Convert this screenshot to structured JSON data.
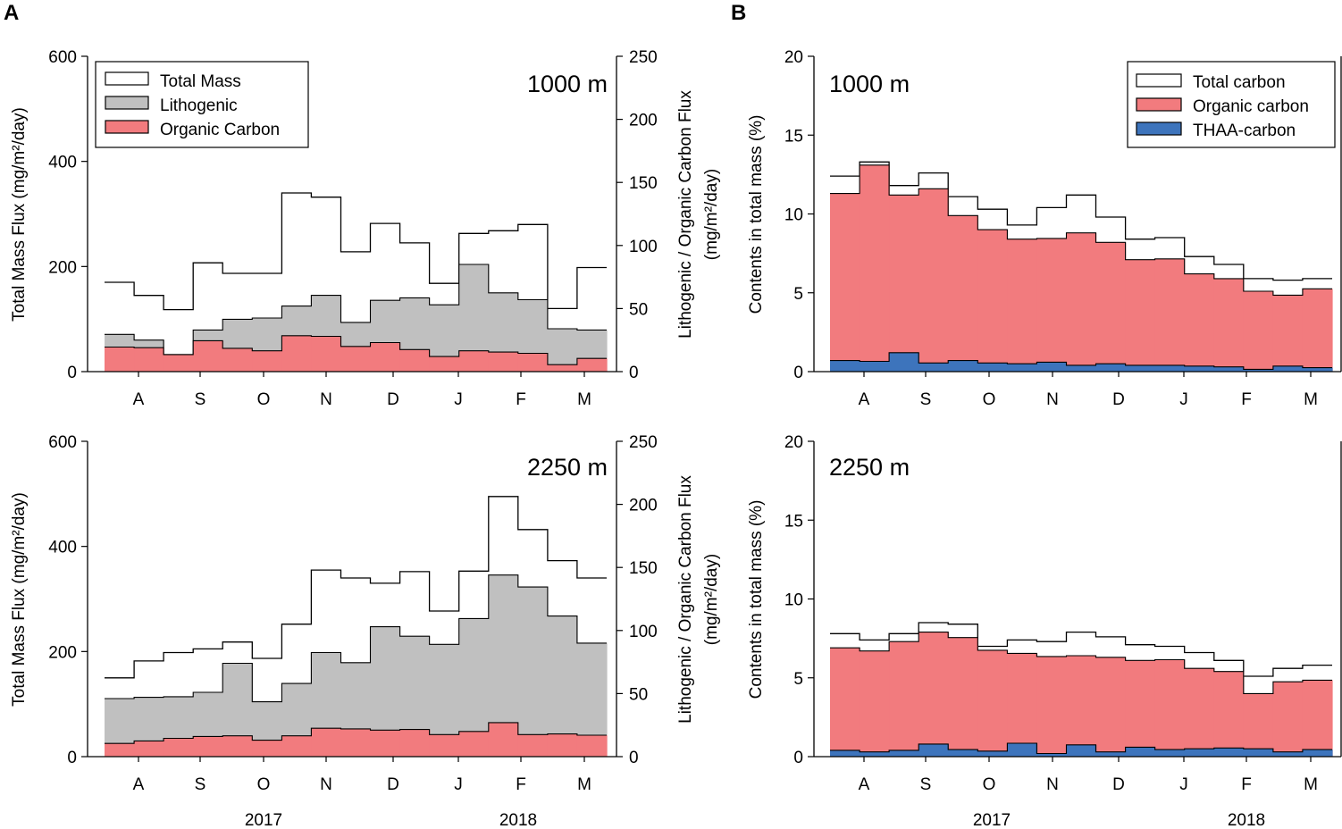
{
  "figure": {
    "panel_a_label": "A",
    "panel_b_label": "B",
    "year_labels": [
      "2017",
      "2018"
    ]
  },
  "colors": {
    "total": "#ffffff",
    "lithogenic": "#c0c0c0",
    "organic": "#f27b7e",
    "thaa": "#3d74bc",
    "line": "#000000"
  },
  "chart_data": [
    {
      "id": "a1",
      "type": "area",
      "panel": "A",
      "depth_label": "1000 m",
      "ylabel_left": "Total Mass Flux (mg/m²/day)",
      "ylabel_right_line1": "Lithogenic / Organic Carbon Flux",
      "ylabel_right_line2": "(mg/m²/day)",
      "ylim_left": [
        0,
        600
      ],
      "yticks_left": [
        "0",
        "200",
        "400",
        "600"
      ],
      "ylim_right": [
        0,
        250
      ],
      "yticks_right": [
        "0",
        "50",
        "100",
        "150",
        "200",
        "250"
      ],
      "month_labels": [
        "A",
        "S",
        "O",
        "N",
        "D",
        "J",
        "F",
        "M"
      ],
      "legend": [
        "Total Mass",
        "Lithogenic",
        "Organic Carbon"
      ],
      "series": [
        {
          "name": "Total Mass",
          "axis": "left",
          "style": "line",
          "values": [
            170,
            145,
            118,
            207,
            187,
            187,
            340,
            332,
            228,
            282,
            245,
            168,
            263,
            268,
            280,
            120,
            198
          ]
        },
        {
          "name": "Lithogenic",
          "axis": "right",
          "style": "fill",
          "values": [
            29.5,
            25.0,
            13.5,
            33.0,
            41.5,
            42.5,
            52.0,
            60.5,
            39.0,
            56.5,
            58.5,
            53.0,
            85.0,
            62.5,
            57.0,
            34.0,
            33.0
          ]
        },
        {
          "name": "Organic Carbon",
          "axis": "right",
          "style": "fill",
          "values": [
            19.5,
            19.0,
            13.5,
            24.5,
            18.5,
            16.5,
            28.5,
            28.0,
            20.0,
            23.0,
            17.5,
            12.0,
            16.5,
            15.5,
            14.5,
            5.5,
            10.5
          ]
        }
      ]
    },
    {
      "id": "a2",
      "type": "area",
      "panel": "A",
      "depth_label": "2250 m",
      "ylabel_left": "Total Mass Flux (mg/m²/day)",
      "ylabel_right_line1": "Lithogenic / Organic Carbon Flux",
      "ylabel_right_line2": "(mg/m²/day)",
      "ylim_left": [
        0,
        600
      ],
      "yticks_left": [
        "0",
        "200",
        "400",
        "600"
      ],
      "ylim_right": [
        0,
        250
      ],
      "yticks_right": [
        "0",
        "50",
        "100",
        "150",
        "200",
        "250"
      ],
      "month_labels": [
        "A",
        "S",
        "O",
        "N",
        "D",
        "J",
        "F",
        "M"
      ],
      "series": [
        {
          "name": "Total Mass",
          "axis": "left",
          "style": "line",
          "values": [
            150,
            182,
            198,
            205,
            218,
            187,
            252,
            355,
            340,
            330,
            352,
            277,
            353,
            495,
            432,
            373,
            340
          ]
        },
        {
          "name": "Lithogenic",
          "axis": "right",
          "style": "fill",
          "values": [
            46.0,
            47.0,
            47.5,
            51.0,
            74.0,
            43.5,
            58.0,
            82.5,
            74.5,
            103.0,
            95.5,
            89.0,
            109.5,
            144.0,
            134.5,
            111.5,
            90.0
          ]
        },
        {
          "name": "Organic Carbon",
          "axis": "right",
          "style": "fill",
          "values": [
            10.5,
            12.5,
            14.5,
            16.0,
            16.5,
            13.0,
            16.5,
            22.5,
            22.0,
            21.0,
            21.5,
            17.5,
            20.0,
            27.0,
            17.5,
            18.0,
            17.0
          ]
        }
      ]
    },
    {
      "id": "b1",
      "type": "area",
      "panel": "B",
      "depth_label": "1000 m",
      "ylabel_left": "Contents in total mass (%)",
      "ylim_left": [
        0,
        20
      ],
      "yticks_left": [
        "0",
        "5",
        "10",
        "15",
        "20"
      ],
      "month_labels": [
        "A",
        "S",
        "O",
        "N",
        "D",
        "J",
        "F",
        "M"
      ],
      "legend": [
        "Total carbon",
        "Organic carbon",
        "THAA-carbon"
      ],
      "series": [
        {
          "name": "Total carbon",
          "style": "line",
          "values": [
            12.4,
            13.3,
            11.8,
            12.6,
            11.1,
            10.3,
            9.3,
            10.4,
            11.2,
            9.8,
            8.4,
            8.5,
            7.3,
            6.8,
            5.9,
            5.8,
            5.9
          ]
        },
        {
          "name": "Organic carbon",
          "style": "fill",
          "values": [
            11.3,
            13.1,
            11.2,
            11.6,
            9.9,
            9.0,
            8.4,
            8.45,
            8.8,
            8.2,
            7.1,
            7.15,
            6.2,
            5.9,
            5.1,
            4.85,
            5.25
          ]
        },
        {
          "name": "THAA-carbon",
          "style": "fill",
          "values": [
            0.7,
            0.65,
            1.2,
            0.55,
            0.7,
            0.55,
            0.5,
            0.6,
            0.4,
            0.5,
            0.4,
            0.4,
            0.35,
            0.3,
            0.15,
            0.35,
            0.25
          ]
        }
      ]
    },
    {
      "id": "b2",
      "type": "area",
      "panel": "B",
      "depth_label": "2250 m",
      "ylabel_left": "Contents in total mass (%)",
      "ylim_left": [
        0,
        20
      ],
      "yticks_left": [
        "0",
        "5",
        "10",
        "15",
        "20"
      ],
      "month_labels": [
        "A",
        "S",
        "O",
        "N",
        "D",
        "J",
        "F",
        "M"
      ],
      "series": [
        {
          "name": "Total carbon",
          "style": "line",
          "values": [
            7.8,
            7.4,
            7.8,
            8.5,
            8.4,
            7.0,
            7.4,
            7.3,
            7.9,
            7.6,
            7.1,
            7.0,
            6.6,
            6.1,
            5.1,
            5.6,
            5.8
          ]
        },
        {
          "name": "Organic carbon",
          "style": "fill",
          "values": [
            6.9,
            6.7,
            7.3,
            7.9,
            7.55,
            6.75,
            6.55,
            6.35,
            6.4,
            6.3,
            6.1,
            6.15,
            5.6,
            5.4,
            4.0,
            4.75,
            4.85
          ]
        },
        {
          "name": "THAA-carbon",
          "style": "fill",
          "values": [
            0.4,
            0.3,
            0.4,
            0.8,
            0.45,
            0.35,
            0.85,
            0.2,
            0.75,
            0.3,
            0.6,
            0.45,
            0.5,
            0.55,
            0.5,
            0.3,
            0.45
          ]
        }
      ]
    }
  ]
}
